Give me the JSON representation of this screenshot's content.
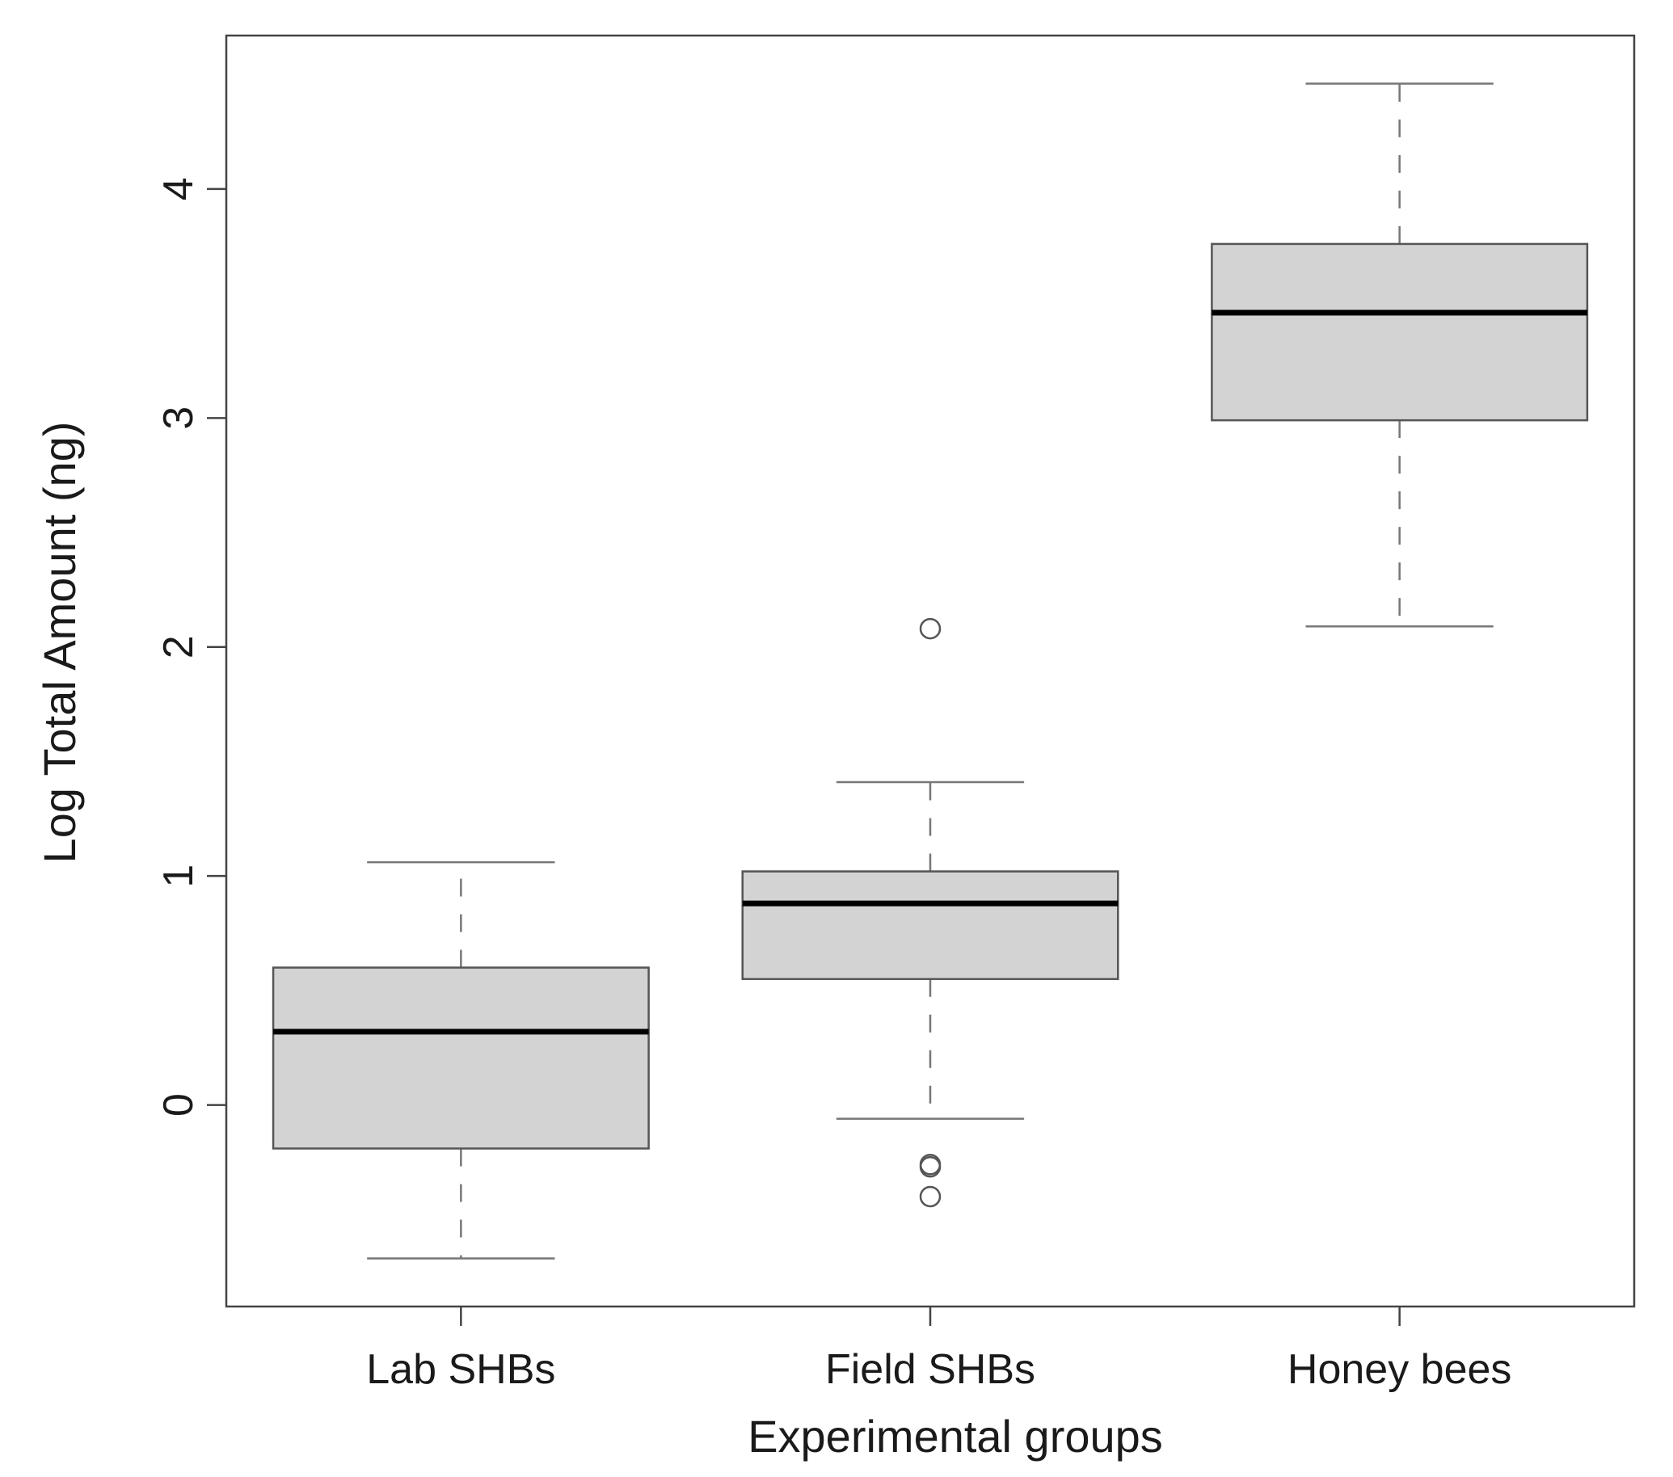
{
  "chart_data": {
    "type": "boxplot",
    "title": "",
    "xlabel": "Experimental groups",
    "ylabel": "Log Total Amount (ng)",
    "ylim": [
      -0.88,
      4.67
    ],
    "yticks": [
      0,
      1,
      2,
      3,
      4
    ],
    "categories": [
      "Lab SHBs",
      "Field SHBs",
      "Honey bees"
    ],
    "boxes": [
      {
        "name": "Lab SHBs",
        "whisker_low": -0.67,
        "q1": -0.19,
        "median": 0.32,
        "q3": 0.6,
        "whisker_high": 1.06,
        "outliers": []
      },
      {
        "name": "Field SHBs",
        "whisker_low": -0.06,
        "q1": 0.55,
        "median": 0.88,
        "q3": 1.02,
        "whisker_high": 1.41,
        "outliers": [
          2.08,
          -0.26,
          -0.27,
          -0.4
        ]
      },
      {
        "name": "Honey bees",
        "whisker_low": 2.09,
        "q1": 2.99,
        "median": 3.46,
        "q3": 3.76,
        "whisker_high": 4.46,
        "outliers": []
      }
    ],
    "colors": {
      "box_fill": "#d3d3d3",
      "box_edge": "#555555",
      "median": "#000000",
      "whisker": "#777777",
      "frame": "#444444"
    }
  }
}
